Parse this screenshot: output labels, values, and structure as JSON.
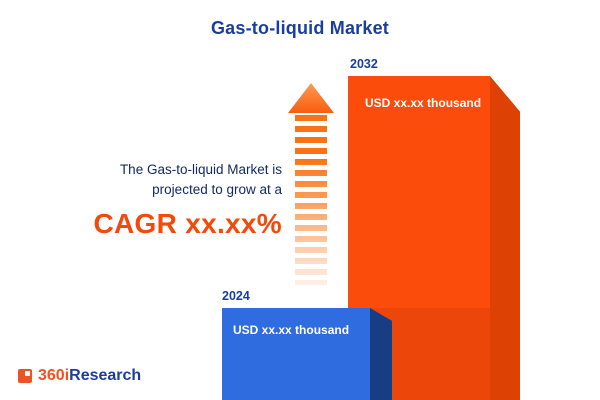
{
  "title": "Gas-to-liquid Market",
  "annotation": {
    "line1": "The Gas-to-liquid Market is",
    "line2": "projected to grow at a",
    "cagr": "CAGR xx.xx%"
  },
  "bars": [
    {
      "year": "2024",
      "label": "USD xx.xx thousand",
      "front_color": "#2e6ce0",
      "side_color": "#173d85"
    },
    {
      "year": "2032",
      "label": "USD xx.xx thousand",
      "front_color": "#fb4c0c",
      "side_color": "#dd4104"
    }
  ],
  "arrow": {
    "icon": "growth-up-arrow",
    "color": "#f97316"
  },
  "logo": {
    "prefix": "360i",
    "suffix": "Research",
    "prefix_color": "#f05323",
    "suffix_color": "#1b3e9e"
  },
  "colors": {
    "title_navy": "#1b3e9e",
    "text_navy": "#132a63",
    "accent_orange": "#f4490a",
    "background": "#ffffff"
  },
  "chart_data": {
    "type": "bar",
    "categories": [
      "2024",
      "2032"
    ],
    "series": [
      {
        "name": "Gas-to-liquid Market size",
        "values": [
          null,
          null
        ],
        "value_labels": [
          "USD xx.xx thousand",
          "USD xx.xx thousand"
        ]
      }
    ],
    "title": "Gas-to-liquid Market",
    "xlabel": "",
    "ylabel": "",
    "legend": false,
    "grid": false,
    "annotations": [
      "The Gas-to-liquid Market is projected to grow at a CAGR xx.xx%"
    ]
  }
}
